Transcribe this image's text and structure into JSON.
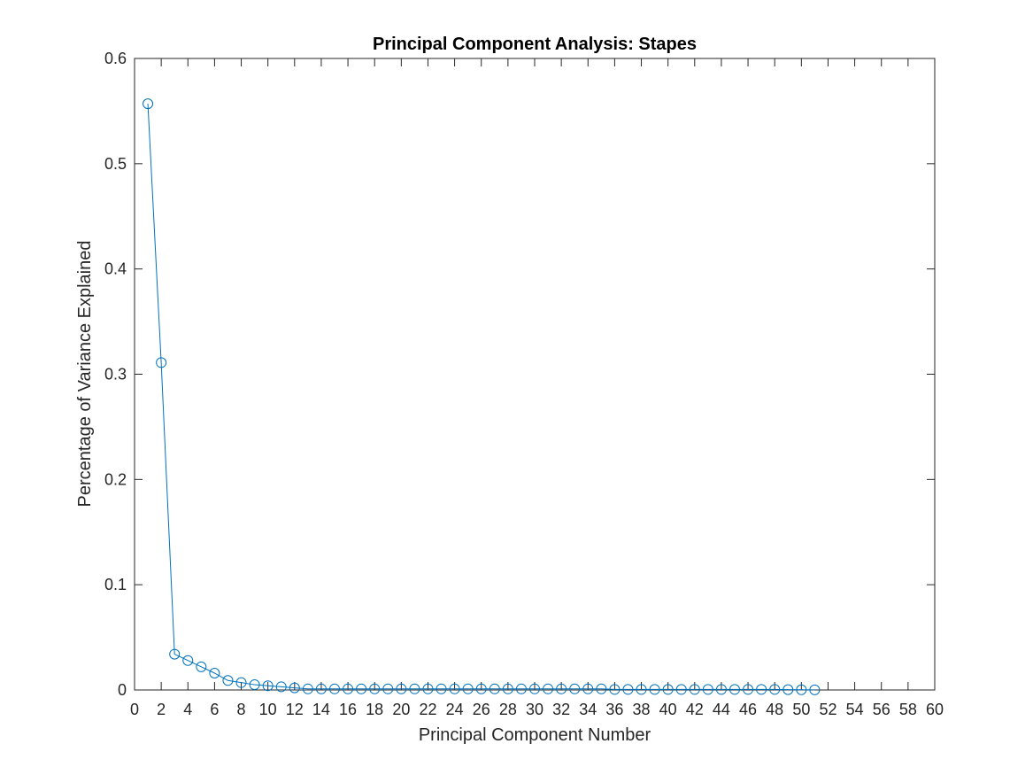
{
  "chart_data": {
    "type": "line",
    "title": "Principal Component Analysis: Stapes",
    "xlabel": "Principal Component Number",
    "ylabel": "Percentage of Variance Explained",
    "xlim": [
      0,
      60
    ],
    "ylim": [
      0,
      0.6
    ],
    "xticks": [
      0,
      2,
      4,
      6,
      8,
      10,
      12,
      14,
      16,
      18,
      20,
      22,
      24,
      26,
      28,
      30,
      32,
      34,
      36,
      38,
      40,
      42,
      44,
      46,
      48,
      50,
      52,
      54,
      56,
      58,
      60
    ],
    "yticks": [
      0,
      0.1,
      0.2,
      0.3,
      0.4,
      0.5,
      0.6
    ],
    "grid": false,
    "marker": "circle",
    "series_color": "#0072BD",
    "series": [
      {
        "x": [
          1,
          2,
          3,
          4,
          5,
          6,
          7,
          8,
          9,
          10,
          11,
          12,
          13,
          14,
          15,
          16,
          17,
          18,
          19,
          20,
          21,
          22,
          23,
          24,
          25,
          26,
          27,
          28,
          29,
          30,
          31,
          32,
          33,
          34,
          35,
          36,
          37,
          38,
          39,
          40,
          41,
          42,
          43,
          44,
          45,
          46,
          47,
          48,
          49,
          50,
          51
        ],
        "values": [
          0.557,
          0.311,
          0.034,
          0.028,
          0.022,
          0.016,
          0.009,
          0.007,
          0.005,
          0.004,
          0.003,
          0.002,
          0.001,
          0.001,
          0.001,
          0.001,
          0.001,
          0.001,
          0.001,
          0.001,
          0.001,
          0.001,
          0.001,
          0.001,
          0.001,
          0.001,
          0.001,
          0.001,
          0.001,
          0.001,
          0.001,
          0.001,
          0.001,
          0.001,
          0.001,
          0.0005,
          0.0005,
          0.0005,
          0.0005,
          0.0005,
          0.0005,
          0.0005,
          0.0005,
          0.0005,
          0.0005,
          0.0005,
          0.0005,
          0.0005,
          0.0003,
          0.0002,
          0.0001
        ]
      }
    ]
  }
}
